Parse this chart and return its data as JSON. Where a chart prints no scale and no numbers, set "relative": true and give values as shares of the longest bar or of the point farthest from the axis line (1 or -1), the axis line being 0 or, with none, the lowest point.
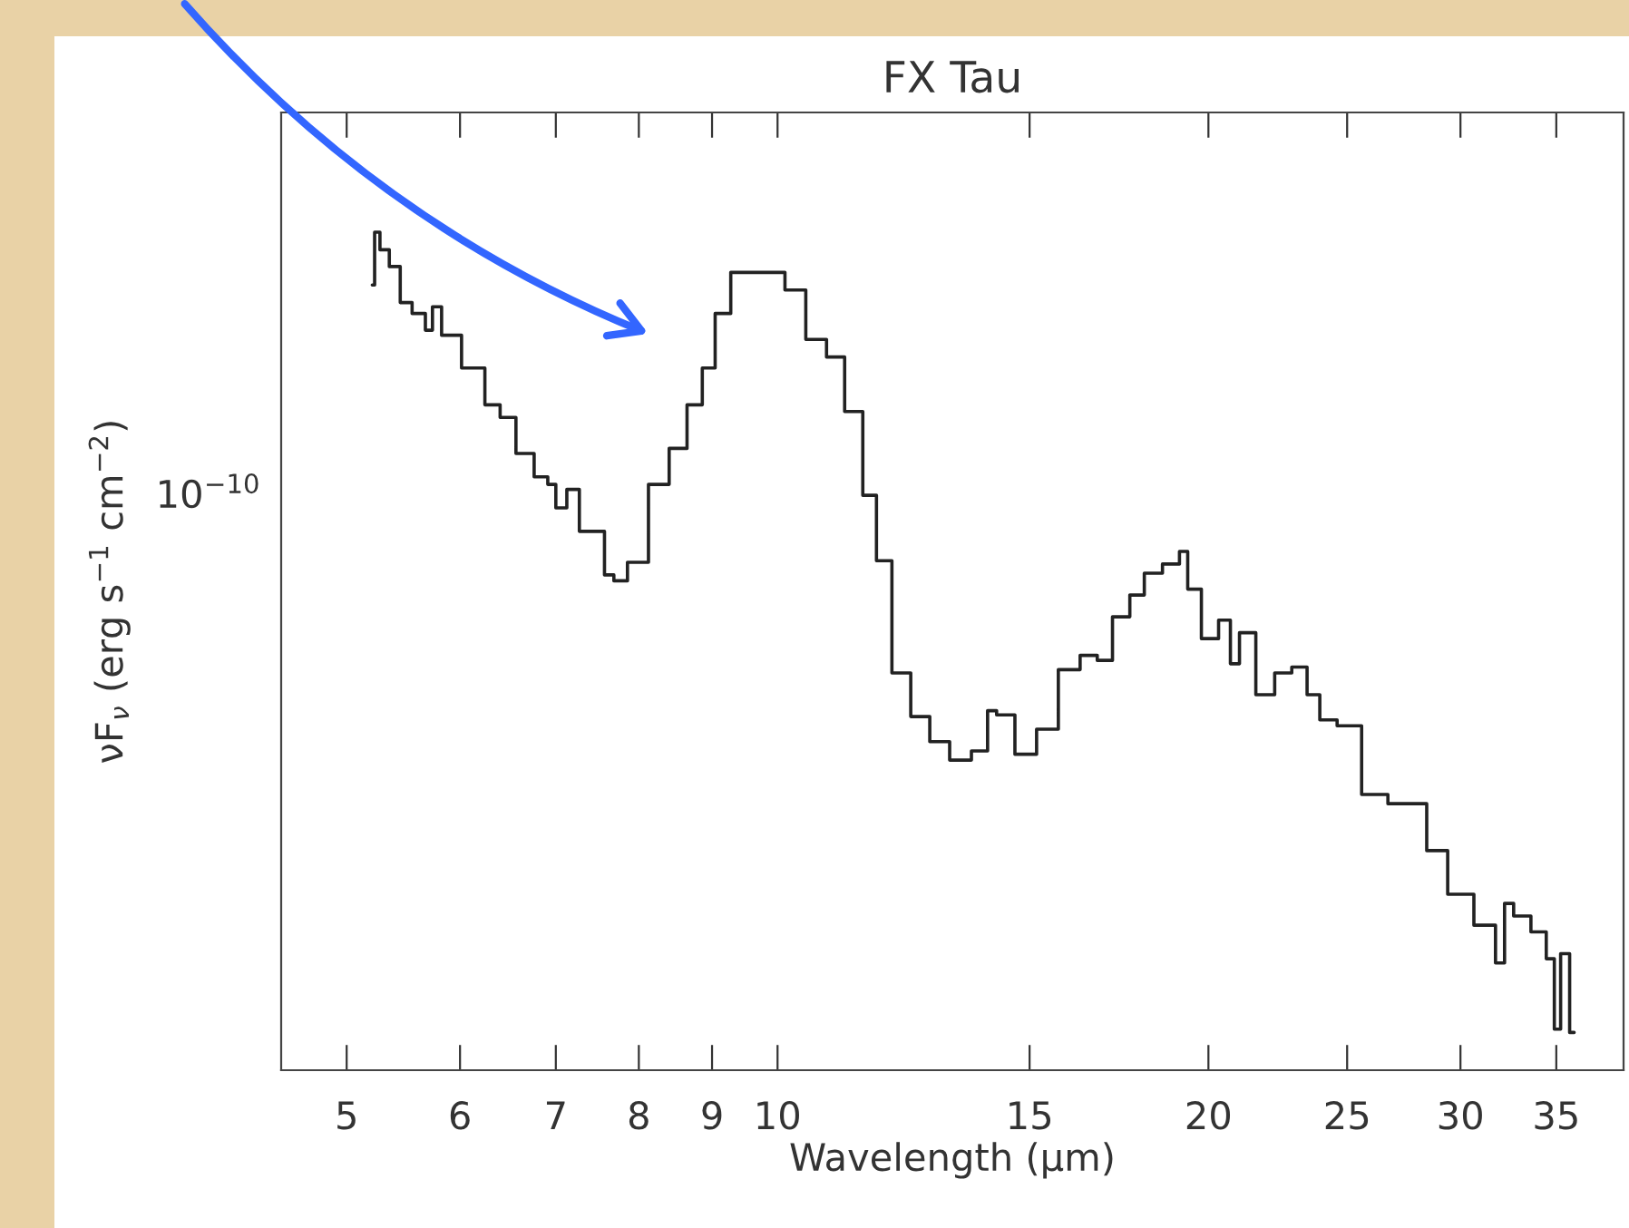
{
  "chart_data": {
    "type": "step",
    "title": "FX Tau",
    "xlabel": "Wavelength (μm)",
    "ylabel": "νF$_{ν}$ (erg s$^{−1}$ cm$^{−2}$)",
    "relative": true,
    "annotations": [
      "10$^{−10}$"
    ],
    "log": "x",
    "xlim": [
      4.5,
      39.0
    ],
    "xticks": [
      5,
      6,
      7,
      8,
      9,
      10,
      15,
      20,
      25,
      30,
      35
    ],
    "grid": false,
    "legend": false,
    "marker": "none",
    "line_style": "solid",
    "x": [
      5.21,
      5.25,
      5.3,
      5.41,
      5.49,
      5.62,
      5.73,
      5.75,
      5.9,
      6.13,
      6.36,
      6.44,
      6.69,
      6.83,
      6.99,
      7.01,
      7.24,
      7.3,
      7.51,
      7.63,
      7.74,
      7.97,
      8.28,
      8.52,
      8.77,
      8.95,
      9.14,
      9.41,
      9.68,
      9.97,
      10.27,
      10.66,
      10.98,
      11.3,
      11.64,
      11.81,
      12.23,
      12.55,
      13.0,
      13.38,
      13.94,
      14.1,
      14.35,
      14.95,
      15.39,
      16.03,
      16.51,
      16.94,
      17.34,
      17.91,
      18.17,
      18.98,
      19.2,
      19.49,
      20.06,
      20.6,
      20.84,
      21.21,
      21.96,
      22.54,
      23.2,
      23.68,
      24.17,
      25.03,
      26.15,
      27.24,
      28.04,
      28.79,
      29.99,
      31.32,
      32.16,
      32.25,
      33.11,
      34.09,
      34.79,
      34.99,
      35.5,
      36.02
    ],
    "series": [
      {
        "color": "#222222",
        "values": [
          0.937,
          1.0,
          0.979,
          0.959,
          0.916,
          0.903,
          0.883,
          0.911,
          0.877,
          0.838,
          0.794,
          0.779,
          0.736,
          0.708,
          0.699,
          0.671,
          0.693,
          0.643,
          0.643,
          0.591,
          0.584,
          0.606,
          0.699,
          0.742,
          0.794,
          0.838,
          0.903,
          0.952,
          0.952,
          0.952,
          0.931,
          0.872,
          0.851,
          0.786,
          0.686,
          0.608,
          0.474,
          0.422,
          0.392,
          0.37,
          0.381,
          0.429,
          0.424,
          0.377,
          0.407,
          0.478,
          0.495,
          0.489,
          0.541,
          0.567,
          0.593,
          0.604,
          0.619,
          0.574,
          0.515,
          0.537,
          0.485,
          0.522,
          0.448,
          0.474,
          0.481,
          0.448,
          0.418,
          0.411,
          0.329,
          0.318,
          0.318,
          0.262,
          0.21,
          0.173,
          0.128,
          0.199,
          0.184,
          0.165,
          0.133,
          0.049,
          0.139,
          0.045
        ]
      }
    ]
  }
}
